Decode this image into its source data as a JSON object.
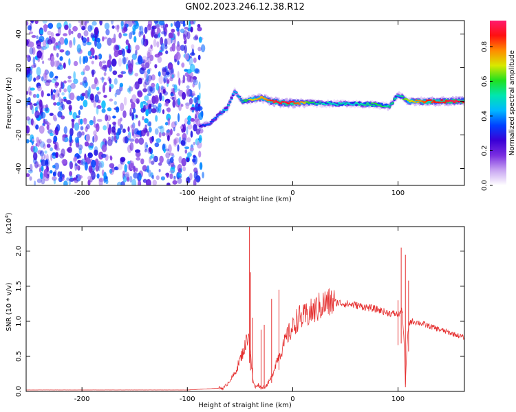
{
  "title": "GN02.2023.246.12.38.R12",
  "chart_data": [
    {
      "type": "heatmap",
      "name": "spectrogram",
      "xlabel": "Height of straight line (km)",
      "ylabel": "Frequency (Hz)",
      "xlim": [
        -253,
        163
      ],
      "ylim": [
        -50,
        48
      ],
      "xticks": [
        -200,
        -100,
        0,
        100
      ],
      "yticks": [
        -40,
        -20,
        0,
        20,
        40
      ],
      "colorbar": {
        "label": "Normalized spectral amplitude",
        "range": [
          0,
          0.95
        ],
        "ticks": [
          0.0,
          0.2,
          0.4,
          0.6,
          0.8
        ],
        "colormap": [
          "#ffffff",
          "#c9a6f2",
          "#7b2fe0",
          "#3a00d6",
          "#0040ff",
          "#00b8ff",
          "#00e6b0",
          "#20e020",
          "#d8e800",
          "#ff8c00",
          "#ff1010",
          "#ff1a6e"
        ]
      },
      "noise_region": {
        "x": [
          -253,
          -85
        ],
        "y": [
          -50,
          48
        ],
        "level": 0.15
      },
      "ridge": [
        {
          "x": -88,
          "y": -15,
          "amp": 0.3
        },
        {
          "x": -78,
          "y": -13,
          "amp": 0.35
        },
        {
          "x": -70,
          "y": -8,
          "amp": 0.4
        },
        {
          "x": -62,
          "y": -4,
          "amp": 0.45
        },
        {
          "x": -55,
          "y": 6,
          "amp": 0.4
        },
        {
          "x": -48,
          "y": 0,
          "amp": 0.5
        },
        {
          "x": -40,
          "y": 1,
          "amp": 0.7
        },
        {
          "x": -30,
          "y": 2,
          "amp": 0.75
        },
        {
          "x": -20,
          "y": 0,
          "amp": 0.85
        },
        {
          "x": -10,
          "y": -1,
          "amp": 0.9
        },
        {
          "x": 0,
          "y": -1,
          "amp": 0.9
        },
        {
          "x": 20,
          "y": -1,
          "amp": 0.55
        },
        {
          "x": 40,
          "y": -1.5,
          "amp": 0.5
        },
        {
          "x": 60,
          "y": -1.5,
          "amp": 0.5
        },
        {
          "x": 80,
          "y": -2,
          "amp": 0.6
        },
        {
          "x": 92,
          "y": -3,
          "amp": 0.55
        },
        {
          "x": 100,
          "y": 4,
          "amp": 0.5
        },
        {
          "x": 110,
          "y": 0,
          "amp": 0.7
        },
        {
          "x": 130,
          "y": 0,
          "amp": 0.85
        },
        {
          "x": 150,
          "y": 0,
          "amp": 0.9
        },
        {
          "x": 163,
          "y": 0,
          "amp": 0.9
        }
      ]
    },
    {
      "type": "line",
      "name": "snr",
      "xlabel": "Height of straight line (km)",
      "ylabel": "SNR (10 * v/v)",
      "scale_label": "(x10",
      "scale_exponent": "4",
      "scale_suffix": ")",
      "xlim": [
        -253,
        163
      ],
      "ylim": [
        0,
        2.35
      ],
      "xticks": [
        -200,
        -100,
        0,
        100
      ],
      "yticks": [
        0.0,
        0.5,
        1.0,
        1.5,
        2.0
      ],
      "color": "#e53030",
      "x": [
        -253,
        -100,
        -65,
        -55,
        -50,
        -45,
        -42,
        -40,
        -38,
        -36,
        -33,
        -30,
        -25,
        -20,
        -15,
        -10,
        -5,
        0,
        5,
        10,
        20,
        30,
        40,
        50,
        60,
        70,
        80,
        90,
        100,
        104,
        106,
        107,
        108,
        110,
        112,
        120,
        130,
        140,
        150,
        163
      ],
      "y": [
        0.02,
        0.02,
        0.05,
        0.25,
        0.45,
        0.65,
        0.85,
        0.5,
        0.2,
        0.05,
        0.1,
        0.05,
        0.08,
        0.2,
        0.45,
        0.6,
        0.8,
        0.9,
        1.05,
        1.05,
        1.15,
        1.25,
        1.27,
        1.25,
        1.23,
        1.2,
        1.17,
        1.12,
        1.1,
        1.15,
        0.65,
        0.1,
        0.5,
        0.95,
        1.0,
        0.98,
        0.93,
        0.88,
        0.83,
        0.77
      ],
      "spikes": [
        {
          "x": -41,
          "y": 2.35
        },
        {
          "x": -40,
          "y": 1.7
        },
        {
          "x": -38,
          "y": 1.05
        },
        {
          "x": -30,
          "y": 0.88
        },
        {
          "x": -27,
          "y": 0.95
        },
        {
          "x": -20,
          "y": 1.32
        },
        {
          "x": -13,
          "y": 1.45
        },
        {
          "x": 100,
          "y": 1.3
        },
        {
          "x": 103,
          "y": 2.05
        },
        {
          "x": 107,
          "y": 1.95
        },
        {
          "x": 110,
          "y": 1.58
        }
      ]
    }
  ]
}
